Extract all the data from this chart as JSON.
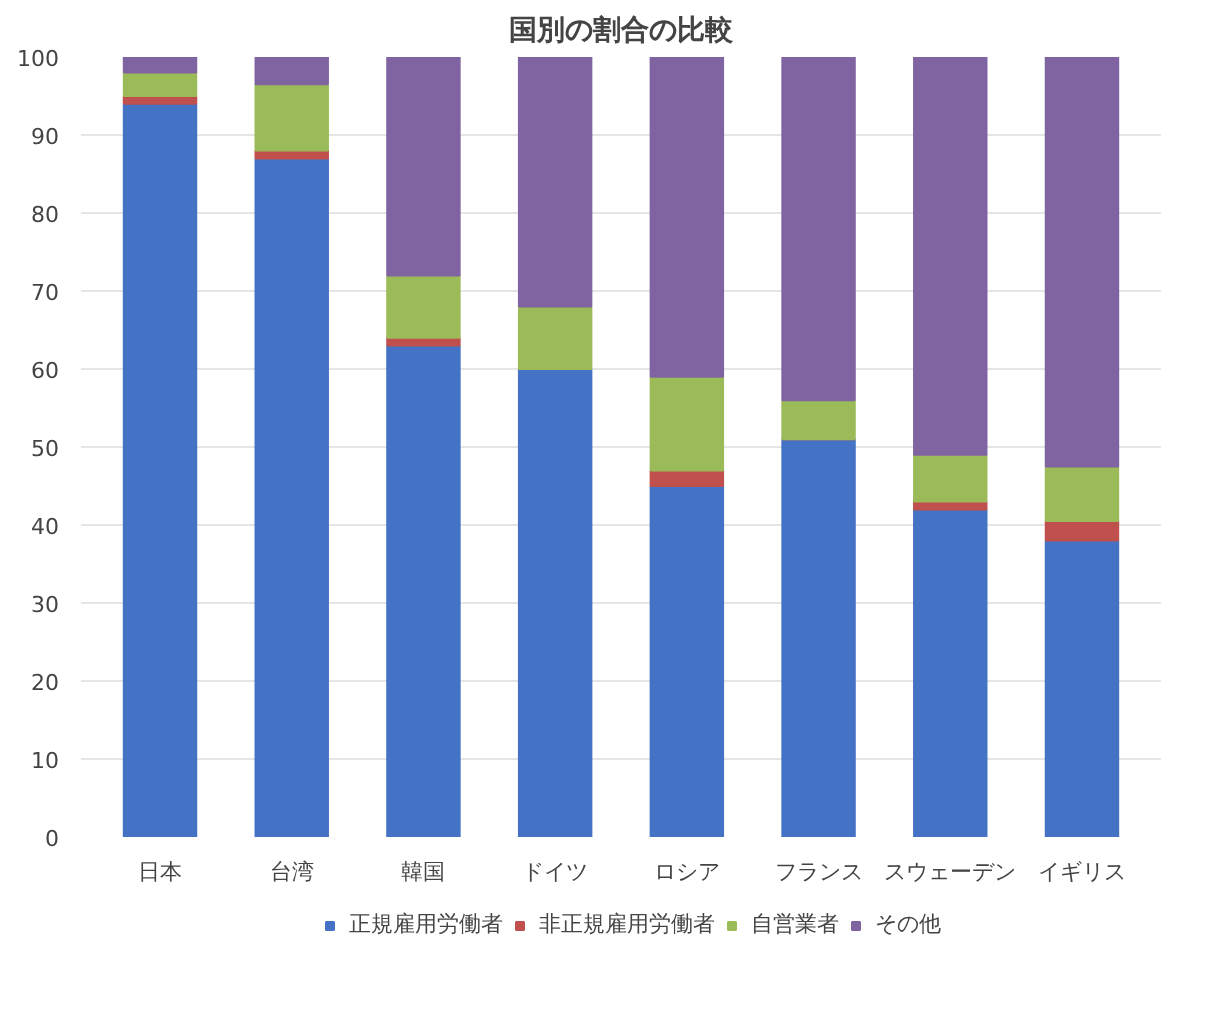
{
  "chart_data": {
    "type": "bar",
    "stacked": true,
    "title": "国別の割合の比較",
    "categories": [
      "日本",
      "台湾",
      "韓国",
      "ドイツ",
      "ロシア",
      "フランス",
      "スウェーデン",
      "イギリス"
    ],
    "series": [
      {
        "name": "正規雇用労働者",
        "color": "#4472c4",
        "values": [
          94,
          87,
          63,
          60,
          45,
          51,
          42,
          38
        ]
      },
      {
        "name": "非正規雇用労働者",
        "color": "#c0504d",
        "values": [
          1,
          1,
          1,
          0,
          2,
          0,
          1,
          2.5
        ]
      },
      {
        "name": "自営業者",
        "color": "#9bbb59",
        "values": [
          3,
          8.5,
          8,
          8,
          12,
          5,
          6,
          7
        ]
      },
      {
        "name": "その他",
        "color": "#8064a2",
        "values": [
          2,
          3.5,
          28,
          32,
          41,
          44,
          51,
          52.5
        ]
      }
    ],
    "ylim": [
      0,
      100
    ],
    "yticks": [
      0,
      10,
      20,
      30,
      40,
      50,
      60,
      70,
      80,
      90,
      100
    ],
    "grid": "y",
    "legend": "bottom"
  }
}
